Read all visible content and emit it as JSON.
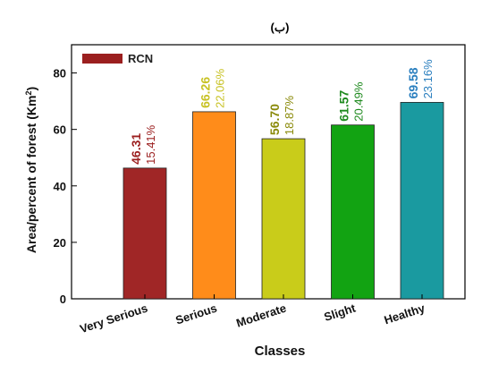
{
  "chart_data": {
    "type": "bar",
    "title": "(ب)",
    "xlabel": "Classes",
    "ylabel_main": "Area/percent of forest (Km",
    "ylabel_sup": "2",
    "ylabel_close": ")",
    "ylim": [
      0,
      90
    ],
    "yticks": [
      "0",
      "20",
      "40",
      "60",
      "80"
    ],
    "legend": {
      "label": "RCN",
      "color": "#9b1f1f",
      "placement": "top-left"
    },
    "categories": [
      "Very Serious",
      "Serious",
      "Moderate",
      "Slight",
      "Healthy"
    ],
    "values": [
      46.31,
      66.26,
      56.7,
      61.57,
      69.58
    ],
    "value_labels": [
      "46.31",
      "66.26",
      "56.70",
      "61.57",
      "69.58"
    ],
    "percent_labels": [
      "15.41%",
      "22.06%",
      "18.87%",
      "20.49%",
      "23.16%"
    ],
    "bar_colors": [
      "#a02626",
      "#ff8c1a",
      "#c9cc1a",
      "#12a312",
      "#1a9aa0"
    ],
    "label_colors": [
      "#9b1f1f",
      "#c8c224",
      "#8a8a0a",
      "#1f8a1f",
      "#2a7fbf"
    ]
  }
}
